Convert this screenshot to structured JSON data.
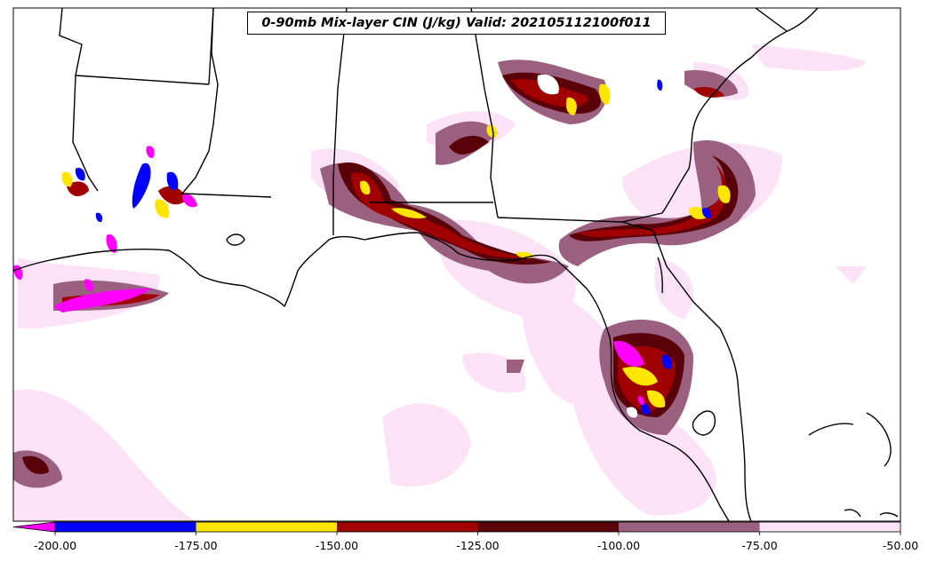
{
  "title": "0-90mb Mix-layer CIN (J/kg) Valid: 202105112100f011",
  "colorbar": {
    "tick_labels": [
      "-200.00",
      "-175.00",
      "-150.00",
      "-125.00",
      "-100.00",
      "-75.00",
      "-50.00"
    ],
    "bins": [
      {
        "from": -200,
        "to": -175,
        "color": "#0000ff"
      },
      {
        "from": -175,
        "to": -150,
        "color": "#ffe600"
      },
      {
        "from": -150,
        "to": -125,
        "color": "#a00000"
      },
      {
        "from": -125,
        "to": -100,
        "color": "#5a0008"
      },
      {
        "from": -100,
        "to": -75,
        "color": "#9b6080"
      },
      {
        "from": -75,
        "to": -50,
        "color": "#fbe2f6"
      }
    ],
    "under_color": "#ff00ff",
    "extend": "min"
  }
}
